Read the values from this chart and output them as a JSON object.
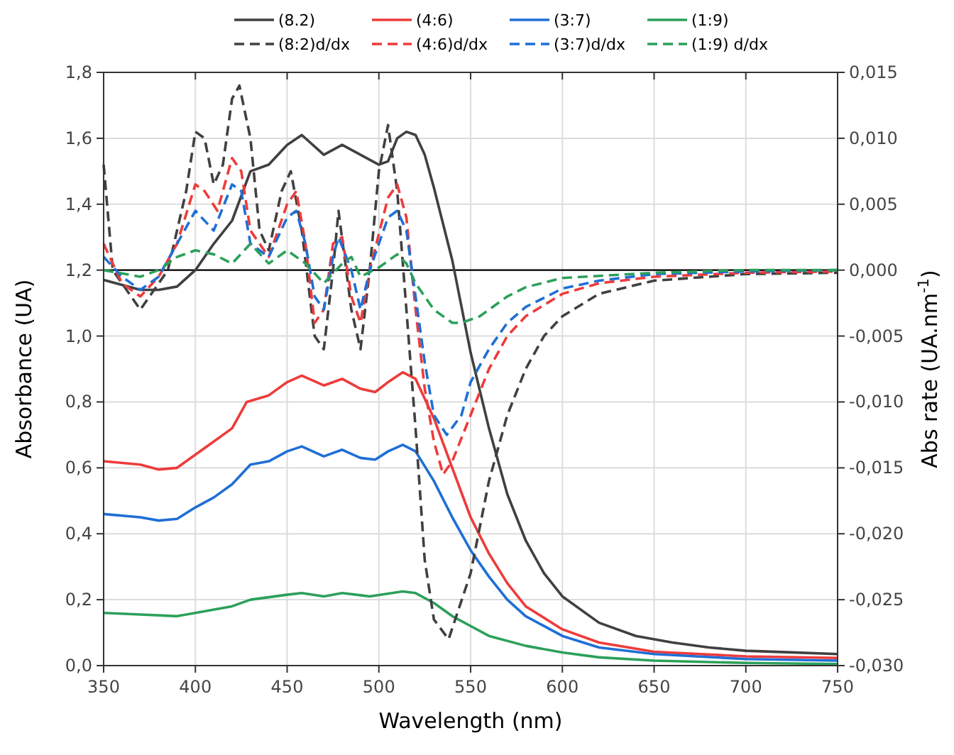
{
  "chart_data": {
    "type": "line",
    "xlabel": "Wavelength (nm)",
    "ylabel": "Absorbance (UA)",
    "y2label": "Abs rate (UA.nm$^{-1}$)",
    "xlim": [
      350,
      750
    ],
    "xticks": [
      350,
      400,
      450,
      500,
      550,
      600,
      650,
      700,
      750
    ],
    "ylim": [
      0,
      1.8
    ],
    "yticks": [
      {
        "value": 0,
        "label": "0,0"
      },
      {
        "value": 0.2,
        "label": "0,2"
      },
      {
        "value": 0.4,
        "label": "0,4"
      },
      {
        "value": 0.6,
        "label": "0,6"
      },
      {
        "value": 0.8,
        "label": "0,8"
      },
      {
        "value": 1,
        "label": "1,0"
      },
      {
        "value": 1.2,
        "label": "1,2"
      },
      {
        "value": 1.4,
        "label": "1,4"
      },
      {
        "value": 1.6,
        "label": "1,6"
      },
      {
        "value": 1.8,
        "label": "1,8"
      }
    ],
    "y2lim": [
      -0.03,
      0.015
    ],
    "y2ticks": [
      {
        "value": -0.03,
        "label": "-0,030"
      },
      {
        "value": -0.025,
        "label": "-0,025"
      },
      {
        "value": -0.02,
        "label": "-0,020"
      },
      {
        "value": -0.015,
        "label": "-0,015"
      },
      {
        "value": -0.01,
        "label": "-0,010"
      },
      {
        "value": -0.005,
        "label": "-0,005"
      },
      {
        "value": 0,
        "label": "0,000"
      },
      {
        "value": 0.005,
        "label": "0,005"
      },
      {
        "value": 0.01,
        "label": "0,010"
      },
      {
        "value": 0.015,
        "label": "0,015"
      }
    ],
    "grid": true,
    "legend": "top",
    "ref_lines": [
      {
        "axis": "y2",
        "value": 0,
        "color": "#000000"
      }
    ],
    "series": [
      {
        "name": "(8.2)",
        "color": "#404040",
        "line_style": "solid",
        "x": [
          350,
          370,
          380,
          390,
          400,
          410,
          420,
          430,
          440,
          450,
          458,
          470,
          480,
          490,
          500,
          505,
          510,
          515,
          520,
          525,
          530,
          540,
          550,
          560,
          570,
          580,
          590,
          600,
          620,
          640,
          660,
          680,
          700,
          725,
          750
        ],
        "values": [
          1.17,
          1.14,
          1.14,
          1.15,
          1.2,
          1.28,
          1.35,
          1.5,
          1.52,
          1.58,
          1.61,
          1.55,
          1.58,
          1.55,
          1.52,
          1.53,
          1.6,
          1.62,
          1.61,
          1.55,
          1.45,
          1.23,
          0.95,
          0.72,
          0.52,
          0.38,
          0.28,
          0.21,
          0.13,
          0.09,
          0.07,
          0.055,
          0.045,
          0.04,
          0.035
        ]
      },
      {
        "name": "(4:6)",
        "color": "#ee3b3b",
        "line_style": "solid",
        "x": [
          350,
          370,
          380,
          390,
          400,
          410,
          420,
          428,
          440,
          450,
          458,
          470,
          480,
          490,
          498,
          505,
          513,
          520,
          530,
          540,
          550,
          560,
          570,
          580,
          600,
          620,
          650,
          700,
          750
        ],
        "values": [
          0.62,
          0.61,
          0.595,
          0.6,
          0.64,
          0.68,
          0.72,
          0.8,
          0.82,
          0.86,
          0.88,
          0.85,
          0.87,
          0.84,
          0.83,
          0.86,
          0.89,
          0.87,
          0.75,
          0.6,
          0.45,
          0.34,
          0.25,
          0.18,
          0.11,
          0.07,
          0.042,
          0.028,
          0.023
        ]
      },
      {
        "name": "(3:7)",
        "color": "#1f6fd6",
        "line_style": "solid",
        "x": [
          350,
          370,
          380,
          390,
          400,
          410,
          420,
          430,
          440,
          450,
          458,
          470,
          480,
          490,
          498,
          505,
          513,
          520,
          530,
          540,
          550,
          560,
          570,
          580,
          600,
          620,
          650,
          700,
          750
        ],
        "values": [
          0.46,
          0.45,
          0.44,
          0.445,
          0.48,
          0.51,
          0.55,
          0.61,
          0.62,
          0.65,
          0.665,
          0.635,
          0.655,
          0.63,
          0.625,
          0.65,
          0.67,
          0.65,
          0.56,
          0.45,
          0.35,
          0.27,
          0.2,
          0.15,
          0.09,
          0.055,
          0.035,
          0.02,
          0.015
        ]
      },
      {
        "name": "(1:9)",
        "color": "#2ca05a",
        "line_style": "solid",
        "x": [
          350,
          370,
          390,
          400,
          420,
          430,
          450,
          458,
          470,
          480,
          495,
          513,
          520,
          530,
          540,
          550,
          560,
          580,
          600,
          620,
          650,
          700,
          750
        ],
        "values": [
          0.16,
          0.155,
          0.15,
          0.16,
          0.18,
          0.2,
          0.215,
          0.22,
          0.21,
          0.22,
          0.21,
          0.225,
          0.22,
          0.19,
          0.15,
          0.12,
          0.09,
          0.06,
          0.04,
          0.025,
          0.015,
          0.008,
          0.005
        ]
      },
      {
        "name": "(8:2)d/dx",
        "color": "#404040",
        "axis": "y2",
        "line_style": "dashed",
        "x": [
          350,
          355,
          360,
          370,
          375,
          385,
          395,
          400,
          405,
          410,
          415,
          420,
          424,
          430,
          435,
          440,
          447,
          452,
          458,
          465,
          470,
          475,
          478,
          485,
          490,
          495,
          500,
          505,
          510,
          515,
          520,
          525,
          530,
          538,
          550,
          560,
          570,
          580,
          590,
          600,
          620,
          650,
          700,
          750
        ],
        "values": [
          0.008,
          0,
          -0.001,
          -0.003,
          -0.002,
          0,
          0.006,
          0.0105,
          0.01,
          0.0065,
          0.008,
          0.013,
          0.014,
          0.01,
          0.003,
          0.0015,
          0.006,
          0.0075,
          0.003,
          -0.005,
          -0.006,
          0,
          0.0045,
          -0.003,
          -0.006,
          0,
          0.0075,
          0.011,
          0.006,
          -0.003,
          -0.012,
          -0.022,
          -0.0265,
          -0.028,
          -0.023,
          -0.016,
          -0.011,
          -0.0075,
          -0.005,
          -0.0035,
          -0.0018,
          -0.0008,
          -0.0003,
          -0.0002
        ]
      },
      {
        "name": "(4:6)d/dx",
        "color": "#ee3b3b",
        "axis": "y2",
        "line_style": "dashed",
        "x": [
          350,
          360,
          370,
          380,
          390,
          400,
          405,
          412,
          420,
          425,
          430,
          440,
          450,
          455,
          460,
          465,
          470,
          475,
          480,
          485,
          490,
          495,
          505,
          510,
          515,
          520,
          525,
          530,
          535,
          540,
          550,
          560,
          570,
          580,
          600,
          620,
          650,
          700,
          750
        ],
        "values": [
          0.002,
          -0.001,
          -0.002,
          -0.0005,
          0.002,
          0.0065,
          0.006,
          0.0045,
          0.0085,
          0.0075,
          0.003,
          0.001,
          0.005,
          0.006,
          0.002,
          -0.004,
          -0.003,
          0.002,
          0.0025,
          -0.002,
          -0.004,
          0,
          0.0055,
          0.0065,
          0.004,
          -0.003,
          -0.009,
          -0.013,
          -0.0155,
          -0.0145,
          -0.011,
          -0.0075,
          -0.005,
          -0.0035,
          -0.0018,
          -0.001,
          -0.0005,
          -0.0002,
          -0.0001
        ]
      },
      {
        "name": "(3:7)d/dx",
        "color": "#1f6fd6",
        "axis": "y2",
        "line_style": "dashed",
        "x": [
          350,
          360,
          370,
          380,
          390,
          400,
          410,
          420,
          425,
          430,
          440,
          450,
          455,
          460,
          465,
          470,
          475,
          478,
          485,
          490,
          495,
          505,
          510,
          515,
          520,
          525,
          530,
          537,
          545,
          550,
          560,
          570,
          580,
          600,
          620,
          650,
          700,
          750
        ],
        "values": [
          0.001,
          -0.0005,
          -0.0015,
          -0.0005,
          0.002,
          0.0045,
          0.003,
          0.0065,
          0.006,
          0.002,
          0.001,
          0.004,
          0.0045,
          0.002,
          -0.002,
          -0.003,
          0.001,
          0.0025,
          0,
          -0.003,
          0,
          0.004,
          0.0045,
          0.003,
          -0.002,
          -0.007,
          -0.011,
          -0.0125,
          -0.011,
          -0.0085,
          -0.006,
          -0.004,
          -0.0028,
          -0.0014,
          -0.0008,
          -0.0003,
          -0.0001,
          0
        ]
      },
      {
        "name": "(1:9) d/dx",
        "color": "#2ca05a",
        "axis": "y2",
        "line_style": "dashed",
        "x": [
          350,
          370,
          380,
          390,
          400,
          410,
          420,
          430,
          440,
          450,
          460,
          470,
          480,
          485,
          490,
          500,
          510,
          515,
          520,
          530,
          540,
          545,
          555,
          570,
          580,
          600,
          650,
          700,
          750
        ],
        "values": [
          0,
          -0.0005,
          0,
          0.001,
          0.0015,
          0.0012,
          0.0005,
          0.002,
          0.0005,
          0.0015,
          0.0005,
          -0.001,
          0.0005,
          0.001,
          -0.0005,
          0.0002,
          0.0012,
          0.0005,
          -0.001,
          -0.003,
          -0.004,
          -0.004,
          -0.0035,
          -0.002,
          -0.0013,
          -0.0006,
          -0.0002,
          0,
          0
        ]
      }
    ]
  }
}
